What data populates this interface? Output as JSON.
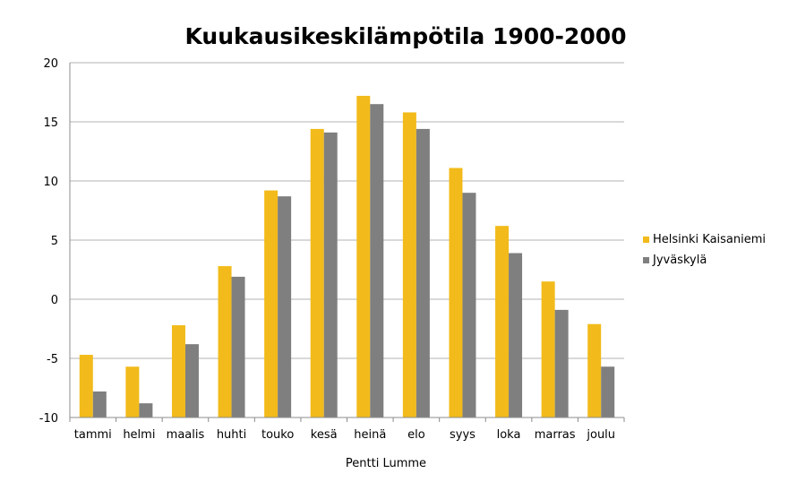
{
  "chart_data": {
    "type": "bar",
    "title": "Kuukausikeskilämpötila 1900-2000",
    "xlabel": "Pentti Lumme",
    "ylabel": "",
    "ylim": [
      -10,
      20
    ],
    "yticks": [
      20,
      15,
      10,
      5,
      0,
      -5,
      -10
    ],
    "grid": true,
    "legend_position": "right",
    "categories": [
      "tammi",
      "helmi",
      "maalis",
      "huhti",
      "touko",
      "kesä",
      "heinä",
      "elo",
      "syys",
      "loka",
      "marras",
      "joulu"
    ],
    "series": [
      {
        "name": "Helsinki Kaisaniemi",
        "color": "#F2BB1B",
        "values": [
          -4.7,
          -5.7,
          -2.2,
          2.8,
          9.2,
          14.4,
          17.2,
          15.8,
          11.1,
          6.2,
          1.5,
          -2.1
        ]
      },
      {
        "name": "Jyväskylä",
        "color": "#7F7F7F",
        "values": [
          -7.8,
          -8.8,
          -3.8,
          1.9,
          8.7,
          14.1,
          16.5,
          14.4,
          9.0,
          3.9,
          -0.9,
          -5.7
        ]
      }
    ]
  }
}
